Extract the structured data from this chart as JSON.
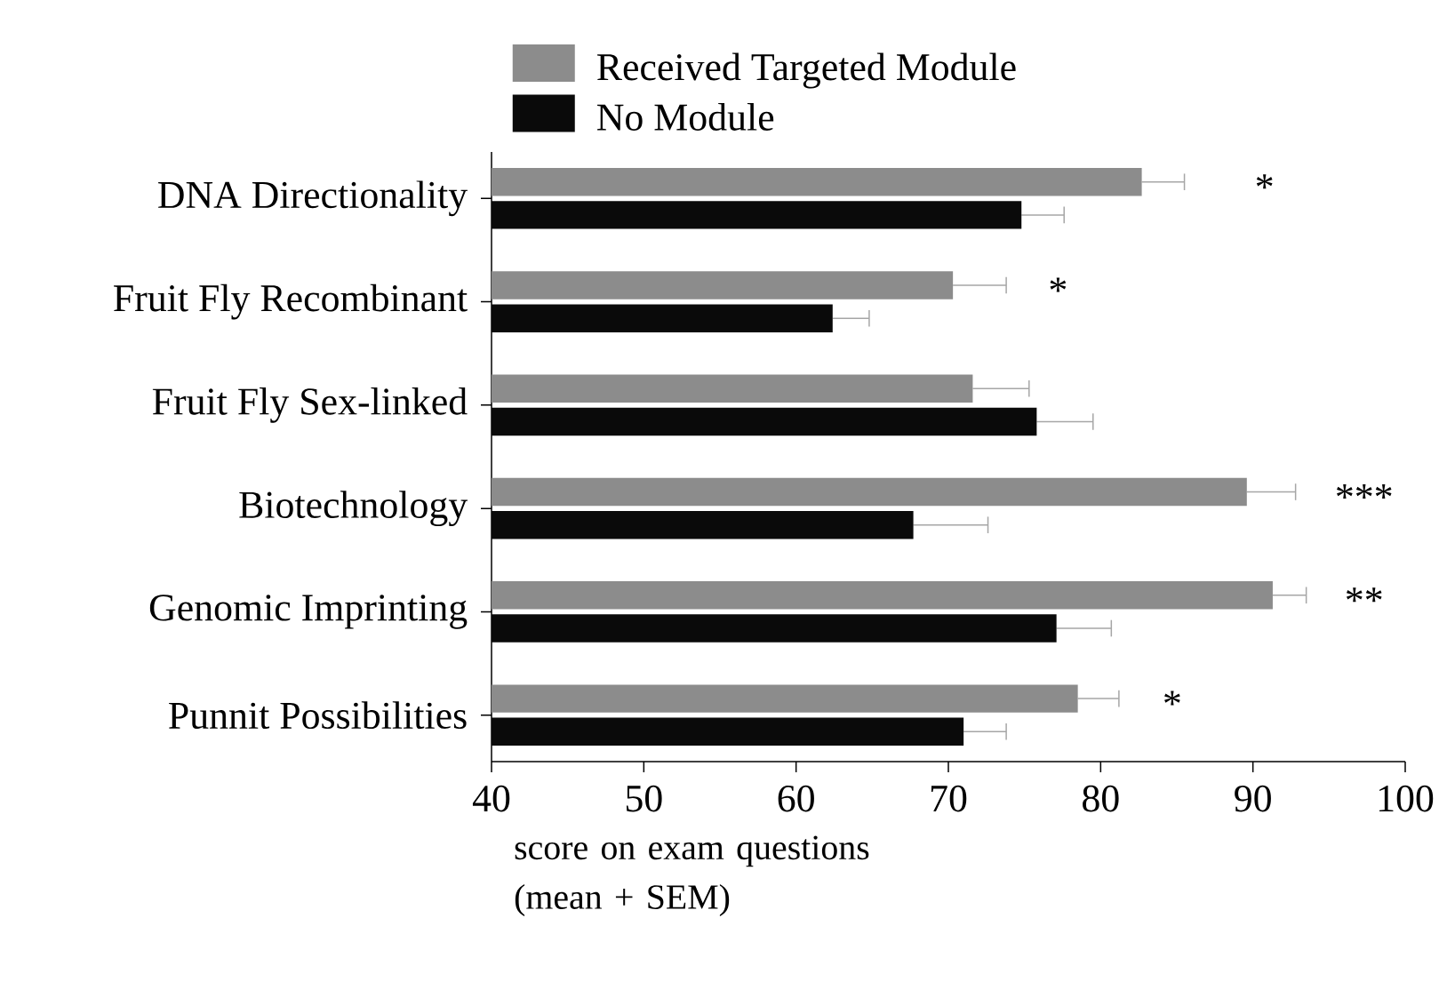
{
  "chart_data": {
    "type": "bar",
    "orientation": "horizontal",
    "xlabel": "score on exam questions (mean + SEM)",
    "categories": [
      "DNA Directionality",
      "Fruit Fly Recombinant",
      "Fruit Fly Sex-linked",
      "Biotechnology",
      "Genomic Imprinting",
      "Punnit Possibilities"
    ],
    "series": [
      {
        "name": "Received Targeted Module",
        "color": "#8c8c8c",
        "values": [
          82.7,
          70.3,
          71.6,
          89.6,
          91.3,
          78.5
        ],
        "errors": [
          [
            82.7,
            85.5
          ],
          [
            70.3,
            73.8
          ],
          [
            71.6,
            75.3
          ],
          [
            89.6,
            92.8
          ],
          [
            91.3,
            93.5
          ],
          [
            78.5,
            81.2
          ]
        ]
      },
      {
        "name": "No Module",
        "color": "#0a0a0a",
        "values": [
          74.8,
          62.4,
          75.8,
          67.7,
          77.1,
          71.0
        ],
        "errors": [
          [
            74.8,
            77.6
          ],
          [
            62.4,
            64.8
          ],
          [
            75.8,
            79.5
          ],
          [
            67.7,
            72.6
          ],
          [
            77.1,
            80.7
          ],
          [
            71.0,
            73.8
          ]
        ]
      }
    ],
    "xlim": [
      40,
      100
    ],
    "xticks": [
      40,
      50,
      60,
      70,
      80,
      90,
      100
    ],
    "legend": "top",
    "grid": false,
    "annotations": [
      "*",
      "*",
      "***",
      "**",
      "*"
    ]
  }
}
